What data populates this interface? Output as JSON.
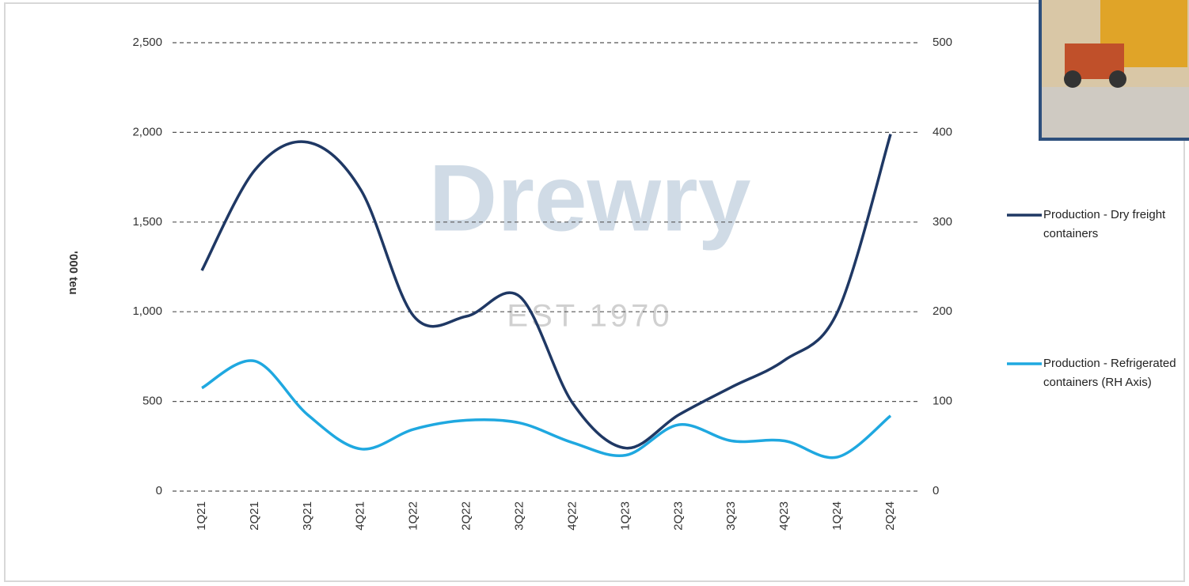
{
  "chart_data": {
    "type": "line",
    "y_label": "'000 teu",
    "watermark": "Drewry",
    "watermark_sub": "EST 1970",
    "categories": [
      "1Q21",
      "2Q21",
      "3Q21",
      "4Q21",
      "1Q22",
      "2Q22",
      "3Q22",
      "4Q22",
      "1Q23",
      "2Q23",
      "3Q23",
      "4Q23",
      "1Q24",
      "2Q24"
    ],
    "series": [
      {
        "name": "Production - Dry freight containers",
        "color": "#1f3864",
        "values": [
          1230,
          1790,
          1945,
          1680,
          975,
          975,
          1085,
          490,
          240,
          425,
          580,
          730,
          1000,
          1990
        ]
      },
      {
        "name": "Production - Refrigerated containers (RH Axis)",
        "color": "#1fa8e0",
        "axis": "y2",
        "values": [
          115,
          145,
          85,
          47,
          69,
          79,
          76,
          54,
          40,
          74,
          56,
          56,
          38,
          84
        ]
      }
    ],
    "ylim": [
      0,
      2500
    ],
    "yticks": [
      0,
      500,
      {
        "value": 1000,
        "label": "1,000"
      },
      {
        "value": 1500,
        "label": "1,500"
      },
      {
        "value": 2000,
        "label": "2,000"
      },
      {
        "value": 2500,
        "label": "2,500"
      }
    ],
    "y2lim": [
      0,
      500
    ],
    "y2ticks": [
      0,
      100,
      200,
      300,
      400,
      500
    ],
    "grid": true,
    "legend": "right"
  }
}
